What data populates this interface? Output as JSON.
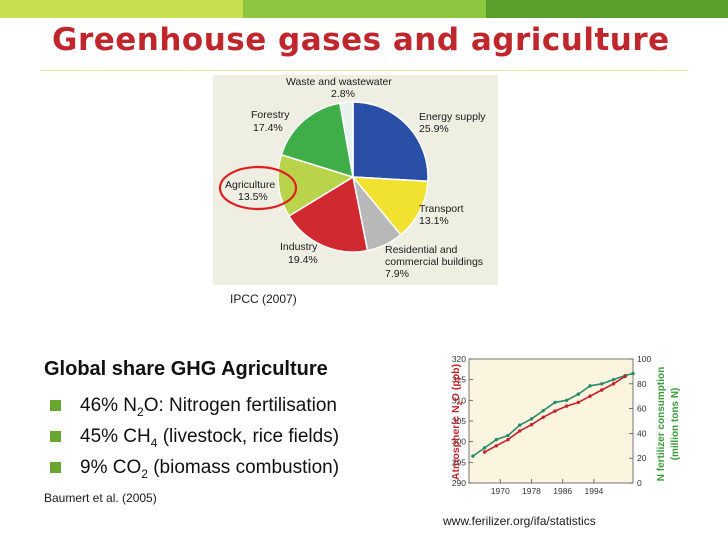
{
  "colors": {
    "title": "#c0272d",
    "bar_light": "#c7df4f",
    "bar_mid": "#8dc63f",
    "bar_dark": "#5aa02c",
    "bullet": "#6aa530",
    "highlight_circle": "#e02020",
    "n2o_series": "#2a8a6a",
    "fert_series": "#c8202a",
    "left_axis_label": "#c0272d",
    "right_axis_label": "#3a9a3a",
    "chart_bg": "#fbf4df"
  },
  "title": "Greenhouse gases and agriculture",
  "pie": {
    "source": "IPCC (2007)",
    "labels": {
      "waste": [
        "Waste and wastewater",
        "2.8%"
      ],
      "energy": [
        "Energy supply",
        "25.9%"
      ],
      "transport": [
        "Transport",
        "13.1%"
      ],
      "residential": [
        "Residential and",
        "commercial buildings",
        "7.9%"
      ],
      "industry": [
        "Industry",
        "19.4%"
      ],
      "agriculture": [
        "Agriculture",
        "13.5%"
      ],
      "forestry": [
        "Forestry",
        "17.4%"
      ]
    }
  },
  "chart_data": [
    {
      "type": "pie",
      "categories": [
        "Energy supply",
        "Transport",
        "Residential and commercial buildings",
        "Industry",
        "Agriculture",
        "Forestry",
        "Waste and wastewater"
      ],
      "values": [
        25.9,
        13.1,
        7.9,
        19.4,
        13.5,
        17.4,
        2.8
      ],
      "colors": [
        "#2a4fa6",
        "#f2e230",
        "#b8b8b8",
        "#d02a30",
        "#b9d44a",
        "#3fae49",
        "#e7f1ee"
      ],
      "highlight": "Agriculture"
    },
    {
      "type": "line",
      "xlabel": "",
      "ylabel": "Atmospheric N2O (ppb)",
      "y2label": "N fertilizer consumption (million tons N)",
      "x_ticks": [
        1970,
        1978,
        1986,
        1994
      ],
      "ylim": [
        290,
        320
      ],
      "y_ticks": [
        290,
        295,
        300,
        305,
        310,
        315,
        320
      ],
      "y2lim": [
        0,
        100
      ],
      "y2_ticks": [
        0,
        20,
        40,
        60,
        80,
        100
      ],
      "xlim": [
        1962,
        2004
      ],
      "series": [
        {
          "axis": "left",
          "x": [
            1963,
            1966,
            1969,
            1972,
            1975,
            1978,
            1981,
            1984,
            1987,
            1990,
            1993,
            1996,
            1999,
            2002,
            2004
          ],
          "values": [
            296.5,
            298.5,
            300.5,
            301.5,
            304,
            305.5,
            307.5,
            309.5,
            310,
            311.5,
            313.5,
            314,
            315,
            316,
            316.5
          ]
        },
        {
          "axis": "right",
          "x": [
            1966,
            1969,
            1972,
            1975,
            1978,
            1981,
            1984,
            1987,
            1990,
            1993,
            1996,
            1999,
            2002
          ],
          "values": [
            25,
            30,
            35,
            42,
            47,
            53,
            58,
            62,
            65,
            70,
            75,
            80,
            86
          ]
        }
      ]
    }
  ],
  "n2o": {
    "ylabel_main": "Atmospheric N",
    "ylabel_sub": "2",
    "ylabel_tail": "O (ppb)",
    "y2label_line1": "N fertilizer consumption",
    "y2label_line2": "(million tons N)",
    "source": "www.ferilizer.org/ifa/statistics"
  },
  "agri": {
    "heading": "Global share GHG Agriculture",
    "b1": {
      "pre": "46% N",
      "sub": "2",
      "post": "O: Nitrogen fertilisation"
    },
    "b2": {
      "pre": "45% CH",
      "sub": "4",
      "post": " (livestock, rice fields)"
    },
    "b3": {
      "pre": "9% CO",
      "sub": "2",
      "post": " (biomass combustion)"
    },
    "source": "Baumert et al. (2005)"
  }
}
